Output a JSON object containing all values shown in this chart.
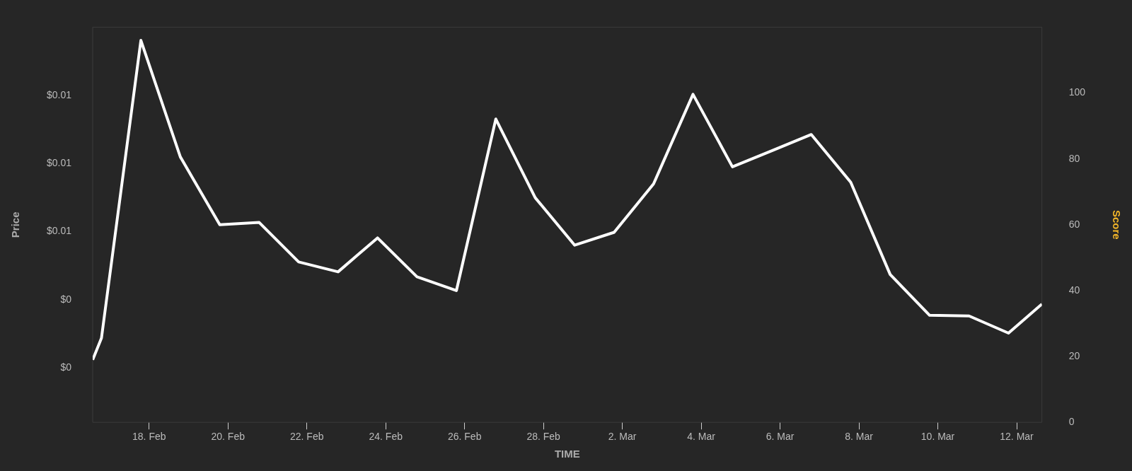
{
  "chart_data": {
    "type": "line",
    "xlabel": "TIME",
    "ylabel": "Price",
    "y2label": "Score",
    "x": [
      "--02-16T13:40",
      "--02-16T19:00",
      "--02-17T19:00",
      "--02-18T19:00",
      "--02-19T19:00",
      "--02-20T19:00",
      "--02-21T19:00",
      "--02-22T19:00",
      "--02-23T19:00",
      "--02-24T19:00",
      "--02-25T19:00",
      "--02-26T19:00",
      "--02-27T19:00",
      "--02-28T19:00",
      "--03-01T19:00",
      "--03-02T19:00",
      "--03-03T19:00",
      "--03-04T19:00",
      "--03-05T19:00",
      "--03-06T19:00",
      "--03-07T19:00",
      "--03-08T19:00",
      "--03-09T19:00",
      "--03-10T19:00",
      "--03-11T19:00",
      "--03-12T15:20"
    ],
    "series": [
      {
        "color": "#ffffff",
        "axis": "y2",
        "values": [
          19.0,
          25.6,
          116,
          80.6,
          60.0,
          60.7,
          48.7,
          45.7,
          56.0,
          44.2,
          40.0,
          92.1,
          68.2,
          53.8,
          57.7,
          72.4,
          99.6,
          77.6,
          82.5,
          87.4,
          72.9,
          44.9,
          32.5,
          32.3,
          27.1,
          35.9
        ]
      }
    ],
    "xlim": [
      "--02-16T13:40",
      "--03-12T15:20"
    ],
    "xticks": [
      {
        "value": "--02-18",
        "label": "18. Feb"
      },
      {
        "value": "--02-20",
        "label": "20. Feb"
      },
      {
        "value": "--02-22",
        "label": "22. Feb"
      },
      {
        "value": "--02-24",
        "label": "24. Feb"
      },
      {
        "value": "--02-26",
        "label": "26. Feb"
      },
      {
        "value": "--02-28",
        "label": "28. Feb"
      },
      {
        "value": "--03-02",
        "label": "2. Mar"
      },
      {
        "value": "--03-04",
        "label": "4. Mar"
      },
      {
        "value": "--03-06",
        "label": "6. Mar"
      },
      {
        "value": "--03-08",
        "label": "8. Mar"
      },
      {
        "value": "--03-10",
        "label": "10. Mar"
      },
      {
        "value": "--03-12",
        "label": "12. Mar"
      }
    ],
    "ylim": [
      0.0022,
      0.008
    ],
    "yticks": [
      {
        "value": 0.003,
        "label": "$0"
      },
      {
        "value": 0.004,
        "label": "$0"
      },
      {
        "value": 0.005,
        "label": "$0.01"
      },
      {
        "value": 0.006,
        "label": "$0.01"
      },
      {
        "value": 0.007,
        "label": "$0.01"
      }
    ],
    "y2lim": [
      0,
      120
    ],
    "y2ticks": [
      0,
      20,
      40,
      60,
      80,
      100
    ],
    "grid": false,
    "legend": false,
    "marker": "none",
    "line_style": "solid"
  }
}
